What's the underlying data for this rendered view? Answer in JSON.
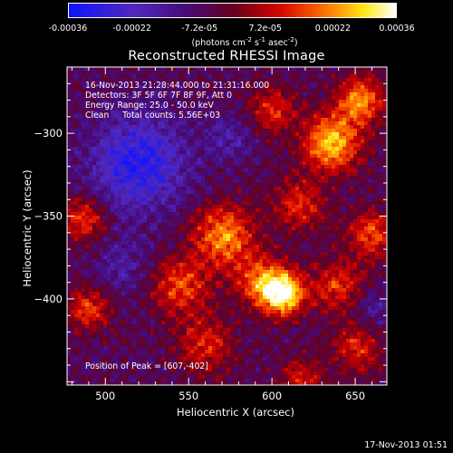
{
  "colorbar": {
    "ticks": [
      "-0.00036",
      "-0.00022",
      "-7.2e-05",
      "7.2e-05",
      "0.00022",
      "0.00036"
    ],
    "tick_values": [
      -0.00036,
      -0.00022,
      -7.2e-05,
      7.2e-05,
      0.00022,
      0.00036
    ],
    "units_prefix": "(photons cm",
    "units_exp1": "-2",
    "units_mid1": " s",
    "units_exp2": "-1",
    "units_mid2": " asec",
    "units_exp3": "-2",
    "units_suffix": ")"
  },
  "annotations": {
    "time_range": "16-Nov-2013 21:28:44.000 to 21:31:16.000",
    "detectors": "Detectors: 3F 5F 6F 7F 8F 9F, Att 0",
    "energy": "Energy Range: 25.0 - 50.0 keV",
    "clean": "Clean     Total counts: 5.56E+03",
    "peak": "Position of Peak = [607,-402]"
  },
  "footer": "17-Nov-2013 01:51",
  "chart_data": {
    "type": "heatmap",
    "title": "Reconstructed RHESSI Image",
    "xlabel": "Heliocentric X (arcsec)",
    "ylabel": "Heliocentric Y (arcsec)",
    "xlim": [
      477,
      669
    ],
    "ylim": [
      -452,
      -260
    ],
    "x_ticks": [
      500,
      550,
      600,
      650
    ],
    "y_ticks": [
      -300,
      -350,
      -400
    ],
    "x_tick_labels": [
      "500",
      "550",
      "600",
      "650"
    ],
    "y_tick_labels": [
      "−300",
      "−350",
      "−400"
    ],
    "peak_position": [
      607,
      -402
    ],
    "colormap": "blue-purple-red-yellow-white",
    "blobs": [
      {
        "x": 607,
        "y": -397,
        "sigma": 9,
        "amp": 1.0
      },
      {
        "x": 636,
        "y": -306,
        "sigma": 12,
        "amp": 0.85
      },
      {
        "x": 653,
        "y": -280,
        "sigma": 10,
        "amp": 0.7
      },
      {
        "x": 571,
        "y": -362,
        "sigma": 13,
        "amp": 0.72
      },
      {
        "x": 594,
        "y": -389,
        "sigma": 11,
        "amp": 0.6
      },
      {
        "x": 545,
        "y": -392,
        "sigma": 12,
        "amp": 0.55
      },
      {
        "x": 487,
        "y": -352,
        "sigma": 9,
        "amp": 0.55
      },
      {
        "x": 490,
        "y": -406,
        "sigma": 9,
        "amp": 0.5
      },
      {
        "x": 660,
        "y": -361,
        "sigma": 10,
        "amp": 0.55
      },
      {
        "x": 640,
        "y": -392,
        "sigma": 11,
        "amp": 0.5
      },
      {
        "x": 600,
        "y": -286,
        "sigma": 10,
        "amp": 0.45
      },
      {
        "x": 560,
        "y": -428,
        "sigma": 12,
        "amp": 0.45
      },
      {
        "x": 651,
        "y": -429,
        "sigma": 10,
        "amp": 0.45
      },
      {
        "x": 616,
        "y": -343,
        "sigma": 11,
        "amp": 0.45
      },
      {
        "x": 618,
        "y": -448,
        "sigma": 9,
        "amp": 0.4
      }
    ],
    "cold_regions": [
      {
        "x": 520,
        "y": -318,
        "sigma": 20,
        "amp": 0.8
      },
      {
        "x": 575,
        "y": -302,
        "sigma": 10,
        "amp": 0.35
      },
      {
        "x": 510,
        "y": -380,
        "sigma": 12,
        "amp": 0.3
      },
      {
        "x": 660,
        "y": -405,
        "sigma": 8,
        "amp": 0.3
      }
    ]
  }
}
